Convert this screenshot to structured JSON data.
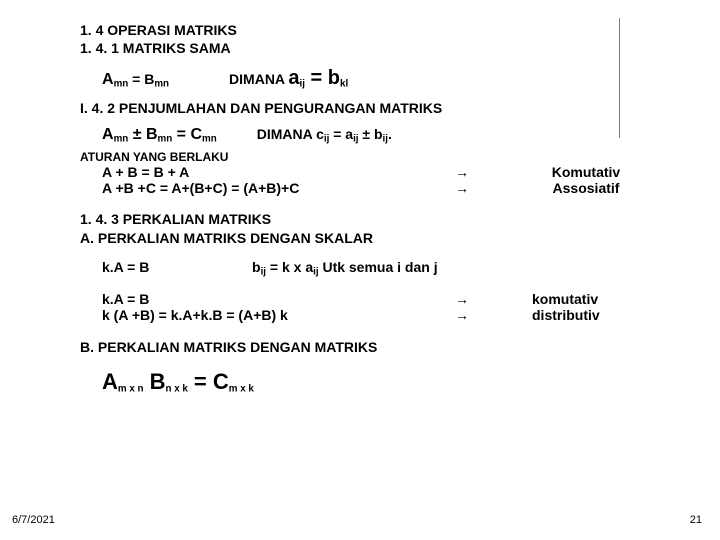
{
  "heading1": "1. 4  OPERASI MATRIKS",
  "heading2": "1. 4. 1  MATRIKS SAMA",
  "eq1_left_main": "A",
  "eq1_left_sub": "mn",
  "eq1_left_op": " = B",
  "eq1_left_sub2": "mn",
  "eq1_right_prefix": "DIMANA ",
  "eq1_right_a": "a",
  "eq1_right_ij": "ij",
  "eq1_right_op": " = ",
  "eq1_right_b": "b",
  "eq1_right_kl": "kl",
  "sec142": "I. 4. 2 PENJUMLAHAN DAN PENGURANGAN MATRIKS",
  "eq2_left": "A",
  "eq2_mn": "mn",
  "eq2_pm": " ± B",
  "eq2_mn2": "mn",
  "eq2_eq": " = C",
  "eq2_mn3": "mn",
  "eq2_right_prefix": "DIMANA c",
  "eq2_ij": "ij",
  "eq2_right_mid": " = a",
  "eq2_ij2": "ij",
  "eq2_right_end": " ± b",
  "eq2_ij3": "ij",
  "eq2_dot": ".",
  "aturan": "ATURAN YANG BERLAKU",
  "rule1_left": "A  + B =  B + A",
  "arrow": "→",
  "rule1_right": "Komutativ",
  "rule2_left": "A +B +C = A+(B+C) = (A+B)+C",
  "rule2_right": "Assosiatif",
  "sec143a": "1. 4. 3  PERKALIAN MATRIKS",
  "sec143b": "A.  PERKALIAN MATRIKS DENGAN SKALAR",
  "kab_left": "k.A = B",
  "kab_right_prefix": "b",
  "kab_ij": "ij",
  "kab_right_mid": " = k x a",
  "kab_ij2": "ij",
  "kab_right_end": " Utk semua i dan j",
  "k1_left": "k.A = B",
  "k1_right": "komutativ",
  "k2_left": "k (A +B)  = k.A+k.B  = (A+B) k",
  "k2_right": "distributiv",
  "secB": "B.  PERKALIAN MATRIKS DENGAN MATRIKS",
  "prod_A": "A",
  "prod_mxn": "m x n",
  "prod_B": " B",
  "prod_nxk": "n x k",
  "prod_eq": " = C",
  "prod_mxk": "m x k",
  "date": "6/7/2021",
  "pagenum": "21"
}
